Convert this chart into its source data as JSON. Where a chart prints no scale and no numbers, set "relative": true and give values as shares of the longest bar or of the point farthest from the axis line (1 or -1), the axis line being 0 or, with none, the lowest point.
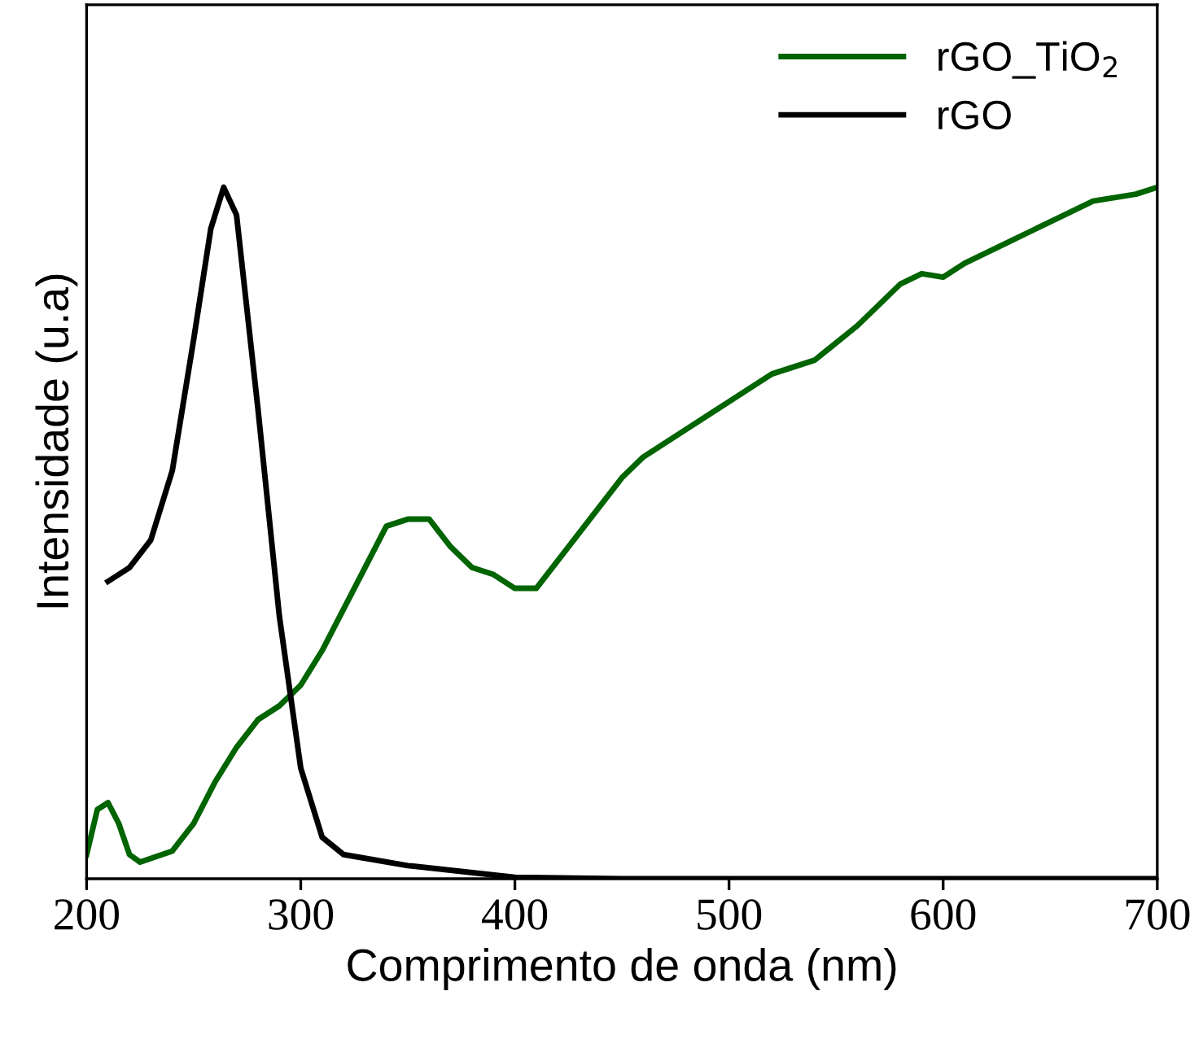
{
  "chart_data": {
    "type": "line",
    "relative": true,
    "xlabel": "Comprimento de onda (nm)",
    "ylabel": "Intensidade (u.a)",
    "xlim": [
      200,
      700
    ],
    "xticks": [
      200,
      300,
      400,
      500,
      600,
      700
    ],
    "legend": "top right",
    "grid": false,
    "line_style": "solid",
    "marker": "none",
    "tick_labels": "x",
    "series": [
      {
        "name": "rGO_TiO$_{2}$",
        "color": "#006400",
        "x": [
          200,
          205,
          210,
          215,
          220,
          225,
          240,
          250,
          260,
          270,
          280,
          290,
          300,
          310,
          320,
          330,
          340,
          350,
          360,
          370,
          380,
          390,
          400,
          410,
          420,
          430,
          440,
          450,
          460,
          480,
          500,
          520,
          530,
          540,
          560,
          580,
          590,
          600,
          610,
          630,
          650,
          670,
          690,
          700
        ],
        "values": [
          0.035,
          0.1,
          0.11,
          0.08,
          0.035,
          0.024,
          0.04,
          0.08,
          0.14,
          0.19,
          0.23,
          0.25,
          0.28,
          0.33,
          0.39,
          0.45,
          0.51,
          0.52,
          0.52,
          0.48,
          0.45,
          0.44,
          0.42,
          0.42,
          0.46,
          0.5,
          0.54,
          0.58,
          0.61,
          0.65,
          0.69,
          0.73,
          0.74,
          0.75,
          0.8,
          0.86,
          0.875,
          0.87,
          0.89,
          0.92,
          0.95,
          0.98,
          0.99,
          1.0
        ]
      },
      {
        "name": "rGO",
        "color": "#000000",
        "x": [
          210,
          220,
          230,
          240,
          250,
          258,
          264,
          270,
          280,
          290,
          300,
          310,
          320,
          350,
          400,
          450,
          500,
          550,
          600,
          650,
          700
        ],
        "values": [
          0.43,
          0.45,
          0.49,
          0.59,
          0.78,
          0.94,
          1.0,
          0.96,
          0.68,
          0.38,
          0.16,
          0.06,
          0.035,
          0.019,
          0.002,
          0,
          0,
          0,
          0,
          0,
          0
        ]
      }
    ]
  }
}
